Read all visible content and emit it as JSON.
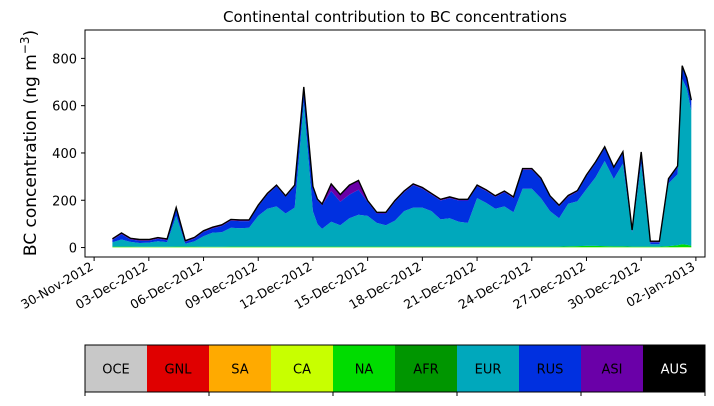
{
  "chart_data": {
    "type": "area",
    "title": "Continental contribution to BC concentrations",
    "ylabel": "BC concentration (ng m⁻³)",
    "ylabel_main": "BC concentration (ng m",
    "ylabel_sup": "−3",
    "ylabel_close": ")",
    "xlabel": "",
    "ylim": [
      -40,
      920
    ],
    "xlim": [
      "2012-11-29T12:00",
      "2013-01-02T12:00"
    ],
    "yticks": [
      0,
      200,
      400,
      600,
      800
    ],
    "ytick_labels": [
      "0",
      "200",
      "400",
      "600",
      "800"
    ],
    "xticks": [
      "2012-11-30",
      "2012-12-03",
      "2012-12-06",
      "2012-12-09",
      "2012-12-12",
      "2012-12-15",
      "2012-12-18",
      "2012-12-21",
      "2012-12-24",
      "2012-12-27",
      "2012-12-30",
      "2013-01-02"
    ],
    "xtick_labels": [
      "30-Nov-2012",
      "03-Dec-2012",
      "06-Dec-2012",
      "09-Dec-2012",
      "12-Dec-2012",
      "15-Dec-2012",
      "18-Dec-2012",
      "21-Dec-2012",
      "24-Dec-2012",
      "27-Dec-2012",
      "30-Dec-2012",
      "02-Jan-2013"
    ],
    "grid": false,
    "x": [
      "2012-12-01T00:00",
      "2012-12-01T12:00",
      "2012-12-02T00:00",
      "2012-12-02T12:00",
      "2012-12-03T00:00",
      "2012-12-03T12:00",
      "2012-12-04T00:00",
      "2012-12-04T12:00",
      "2012-12-05T00:00",
      "2012-12-05T12:00",
      "2012-12-06T00:00",
      "2012-12-06T12:00",
      "2012-12-07T00:00",
      "2012-12-07T12:00",
      "2012-12-08T00:00",
      "2012-12-08T12:00",
      "2012-12-09T00:00",
      "2012-12-09T12:00",
      "2012-12-10T00:00",
      "2012-12-10T12:00",
      "2012-12-11T00:00",
      "2012-12-11T12:00",
      "2012-12-12T00:00",
      "2012-12-12T06:00",
      "2012-12-12T12:00",
      "2012-12-13T00:00",
      "2012-12-13T12:00",
      "2012-12-14T00:00",
      "2012-12-14T12:00",
      "2012-12-15T00:00",
      "2012-12-15T12:00",
      "2012-12-16T00:00",
      "2012-12-16T12:00",
      "2012-12-17T00:00",
      "2012-12-17T12:00",
      "2012-12-18T00:00",
      "2012-12-18T12:00",
      "2012-12-19T00:00",
      "2012-12-19T12:00",
      "2012-12-20T00:00",
      "2012-12-20T12:00",
      "2012-12-21T00:00",
      "2012-12-21T12:00",
      "2012-12-22T00:00",
      "2012-12-22T12:00",
      "2012-12-23T00:00",
      "2012-12-23T12:00",
      "2012-12-24T00:00",
      "2012-12-24T12:00",
      "2012-12-25T00:00",
      "2012-12-25T12:00",
      "2012-12-26T00:00",
      "2012-12-26T12:00",
      "2012-12-27T00:00",
      "2012-12-27T12:00",
      "2012-12-28T00:00",
      "2012-12-28T12:00",
      "2012-12-29T00:00",
      "2012-12-29T12:00",
      "2012-12-30T00:00",
      "2012-12-30T12:00",
      "2012-12-31T00:00",
      "2012-12-31T12:00",
      "2013-01-01T00:00",
      "2013-01-01T06:00",
      "2013-01-01T12:00",
      "2013-01-01T18:00"
    ],
    "series": [
      {
        "name": "OCE",
        "color": "#c8c8c8",
        "values": [
          0,
          0,
          0,
          0,
          0,
          0,
          0,
          0,
          0,
          0,
          0,
          0,
          0,
          0,
          0,
          0,
          0,
          0,
          0,
          0,
          0,
          0,
          0,
          0,
          0,
          0,
          0,
          0,
          0,
          0,
          0,
          0,
          0,
          0,
          0,
          0,
          0,
          0,
          0,
          0,
          0,
          0,
          0,
          0,
          0,
          0,
          0,
          0,
          0,
          0,
          0,
          0,
          0,
          0,
          0,
          0,
          0,
          0,
          0,
          0,
          0,
          0,
          0,
          0,
          0,
          0,
          0
        ]
      },
      {
        "name": "GNL",
        "color": "#e00000",
        "values": [
          0,
          0,
          0,
          0,
          0,
          0,
          0,
          0,
          0,
          0,
          0,
          0,
          0,
          0,
          0,
          0,
          0,
          0,
          0,
          0,
          0,
          0,
          0,
          0,
          0,
          0,
          0,
          0,
          0,
          0,
          0,
          0,
          0,
          0,
          0,
          0,
          0,
          0,
          0,
          0,
          0,
          0,
          0,
          0,
          0,
          0,
          0,
          0,
          0,
          0,
          0,
          0,
          0,
          0,
          0,
          0,
          0,
          0,
          0,
          0,
          0,
          0,
          0,
          0,
          0,
          0,
          0
        ]
      },
      {
        "name": "SA",
        "color": "#ffaa00",
        "values": [
          0,
          0,
          0,
          0,
          0,
          0,
          0,
          0,
          0,
          0,
          0,
          0,
          0,
          0,
          0,
          0,
          0,
          0,
          0,
          0,
          0,
          0,
          0,
          0,
          0,
          0,
          0,
          0,
          0,
          0,
          0,
          0,
          0,
          0,
          0,
          0,
          0,
          0,
          0,
          0,
          0,
          0,
          0,
          0,
          0,
          0,
          0,
          0,
          0,
          0,
          0,
          0,
          0,
          0,
          0,
          0,
          0,
          0,
          0,
          0,
          0,
          0,
          0,
          0,
          0,
          0,
          0
        ]
      },
      {
        "name": "CA",
        "color": "#c8ff00",
        "values": [
          1,
          1,
          1,
          1,
          1,
          1,
          1,
          1,
          1,
          1,
          1,
          1,
          1,
          1,
          1,
          1,
          1,
          1,
          1,
          1,
          1,
          1,
          1,
          1,
          1,
          1,
          1,
          1,
          1,
          1,
          1,
          1,
          1,
          1,
          1,
          1,
          1,
          1,
          1,
          1,
          1,
          1,
          1,
          1,
          1,
          1,
          1,
          1,
          1,
          1,
          1,
          1,
          1,
          1,
          1,
          1,
          1,
          1,
          1,
          1,
          1,
          1,
          1,
          1,
          2,
          2,
          1
        ]
      },
      {
        "name": "NA",
        "color": "#00dc00",
        "values": [
          3,
          3,
          3,
          2,
          2,
          2,
          2,
          3,
          3,
          3,
          2,
          2,
          2,
          3,
          3,
          3,
          3,
          3,
          3,
          3,
          3,
          3,
          3,
          3,
          3,
          3,
          3,
          3,
          3,
          3,
          3,
          3,
          3,
          3,
          3,
          3,
          3,
          3,
          3,
          3,
          3,
          3,
          3,
          3,
          3,
          3,
          3,
          3,
          3,
          3,
          3,
          4,
          5,
          6,
          6,
          5,
          4,
          4,
          3,
          3,
          3,
          3,
          5,
          9,
          12,
          10,
          7
        ]
      },
      {
        "name": "AFR",
        "color": "#009600",
        "values": [
          0,
          0,
          0,
          0,
          0,
          0,
          0,
          0,
          0,
          0,
          0,
          0,
          0,
          0,
          0,
          0,
          0,
          0,
          0,
          0,
          0,
          0,
          0,
          0,
          0,
          0,
          0,
          0,
          0,
          0,
          0,
          0,
          0,
          0,
          0,
          0,
          0,
          0,
          0,
          0,
          0,
          0,
          0,
          0,
          0,
          0,
          0,
          0,
          0,
          0,
          0,
          0,
          0,
          0,
          0,
          0,
          0,
          0,
          0,
          0,
          0,
          0,
          0,
          0,
          0,
          0,
          0
        ]
      },
      {
        "name": "EUR",
        "color": "#00a8bc",
        "values": [
          18,
          30,
          20,
          16,
          18,
          24,
          20,
          130,
          12,
          22,
          45,
          60,
          62,
          80,
          78,
          80,
          130,
          160,
          170,
          140,
          165,
          610,
          150,
          95,
          75,
          105,
          90,
          120,
          135,
          130,
          100,
          90,
          110,
          150,
          165,
          165,
          150,
          115,
          120,
          105,
          100,
          205,
          185,
          160,
          170,
          145,
          245,
          245,
          205,
          150,
          120,
          180,
          190,
          240,
          290,
          360,
          285,
          350,
          60,
          350,
          10,
          10,
          265,
          300,
          700,
          660,
          570
        ]
      },
      {
        "name": "RUS",
        "color": "#0030e0",
        "values": [
          10,
          22,
          10,
          10,
          8,
          10,
          8,
          30,
          8,
          12,
          18,
          18,
          26,
          30,
          30,
          28,
          40,
          60,
          85,
          70,
          90,
          60,
          100,
          100,
          100,
          130,
          100,
          100,
          105,
          60,
          40,
          50,
          80,
          80,
          95,
          80,
          70,
          80,
          85,
          90,
          95,
          50,
          50,
          50,
          60,
          60,
          80,
          80,
          80,
          60,
          50,
          30,
          40,
          55,
          60,
          55,
          45,
          45,
          5,
          45,
          8,
          8,
          15,
          30,
          50,
          40,
          40
        ]
      },
      {
        "name": "ASI",
        "color": "#6a00a8",
        "values": [
          5,
          6,
          5,
          5,
          5,
          5,
          5,
          5,
          5,
          5,
          5,
          5,
          5,
          5,
          5,
          5,
          5,
          5,
          5,
          5,
          5,
          5,
          5,
          5,
          5,
          30,
          30,
          40,
          40,
          5,
          5,
          5,
          5,
          5,
          5,
          5,
          5,
          5,
          5,
          5,
          5,
          5,
          5,
          5,
          5,
          5,
          5,
          5,
          5,
          5,
          5,
          5,
          5,
          5,
          5,
          5,
          5,
          5,
          5,
          5,
          5,
          5,
          5,
          5,
          5,
          5,
          5
        ]
      },
      {
        "name": "AUS",
        "color": "#000000",
        "values": [
          0,
          0,
          0,
          0,
          0,
          0,
          0,
          0,
          0,
          0,
          0,
          0,
          0,
          0,
          0,
          0,
          0,
          0,
          0,
          0,
          0,
          0,
          0,
          0,
          0,
          0,
          0,
          0,
          0,
          0,
          0,
          0,
          0,
          0,
          0,
          0,
          0,
          0,
          0,
          0,
          0,
          0,
          0,
          0,
          0,
          0,
          0,
          0,
          0,
          0,
          0,
          0,
          0,
          0,
          0,
          0,
          0,
          0,
          0,
          0,
          0,
          0,
          0,
          0,
          0,
          0,
          0
        ]
      }
    ],
    "total_line_color": "#000000"
  },
  "legend": {
    "items": [
      {
        "label": "OCE",
        "color": "#c8c8c8",
        "text_color": "#000000"
      },
      {
        "label": "GNL",
        "color": "#e00000",
        "text_color": "#000000"
      },
      {
        "label": "SA",
        "color": "#ffaa00",
        "text_color": "#000000"
      },
      {
        "label": "CA",
        "color": "#c8ff00",
        "text_color": "#000000"
      },
      {
        "label": "NA",
        "color": "#00dc00",
        "text_color": "#000000"
      },
      {
        "label": "AFR",
        "color": "#009600",
        "text_color": "#000000"
      },
      {
        "label": "EUR",
        "color": "#00a8bc",
        "text_color": "#000000"
      },
      {
        "label": "RUS",
        "color": "#0030e0",
        "text_color": "#000000"
      },
      {
        "label": "ASI",
        "color": "#6a00a8",
        "text_color": "#000000"
      },
      {
        "label": "AUS",
        "color": "#000000",
        "text_color": "#ffffff"
      }
    ]
  }
}
